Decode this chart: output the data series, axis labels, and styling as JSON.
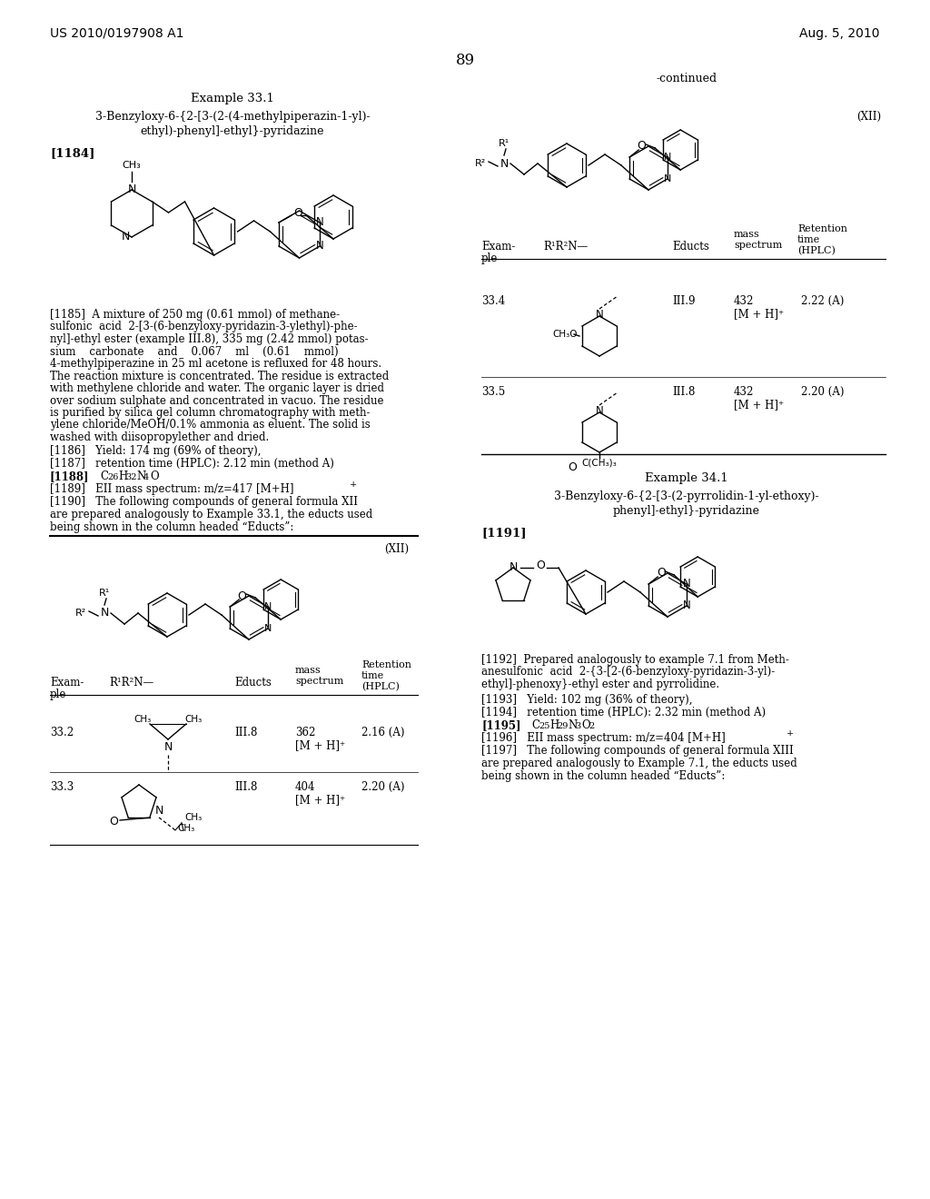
{
  "page_number": "89",
  "left_header": "US 2010/0197908 A1",
  "right_header": "Aug. 5, 2010",
  "background_color": "#ffffff",
  "text_color": "#000000"
}
